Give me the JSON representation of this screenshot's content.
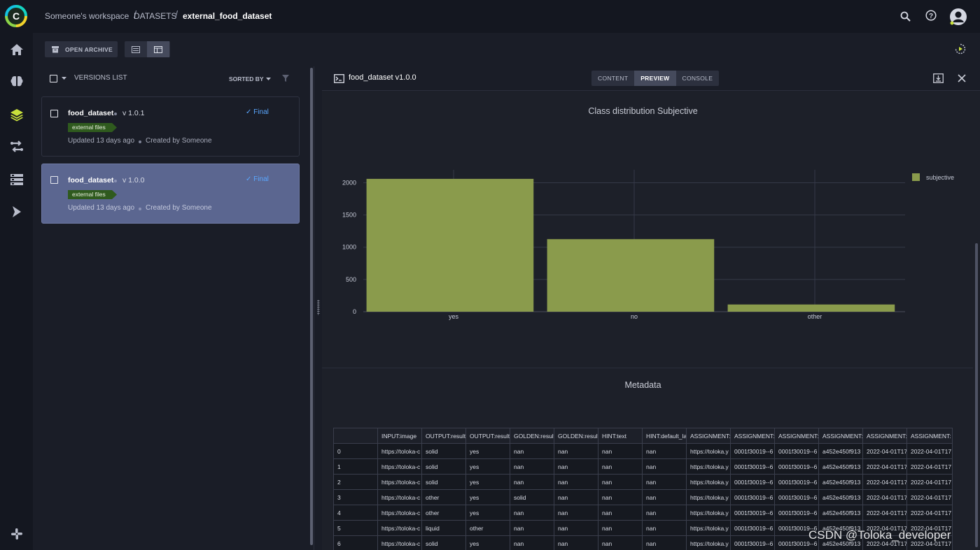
{
  "breadcrumb": {
    "workspace": "Someone's workspace",
    "section": "DATASETS",
    "current": "external_food_dataset"
  },
  "toolbar": {
    "open_archive_label": "OPEN ARCHIVE"
  },
  "versions_list": {
    "header_label": "VERSIONS LIST",
    "sorted_by_label": "SORTED BY",
    "items": [
      {
        "name": "food_dataset",
        "version": "v 1.0.1",
        "status": "Final",
        "tag": "external files",
        "updated": "Updated 13 days ago",
        "created_by": "Created by Someone",
        "selected": false
      },
      {
        "name": "food_dataset",
        "version": "v 1.0.0",
        "status": "Final",
        "tag": "external files",
        "updated": "Updated 13 days ago",
        "created_by": "Created by Someone",
        "selected": true
      }
    ]
  },
  "details": {
    "title": "food_dataset v1.0.0",
    "tabs": [
      "CONTENT",
      "PREVIEW",
      "CONSOLE"
    ],
    "active_tab": "PREVIEW",
    "metadata_title": "Metadata"
  },
  "chart_data": {
    "type": "bar",
    "title": "Class distribution Subjective",
    "categories": [
      "yes",
      "no",
      "other"
    ],
    "series": [
      {
        "name": "subjective",
        "values": [
          2060,
          1125,
          112
        ],
        "color": "#8a9b4c"
      }
    ],
    "ylim": [
      0,
      2200
    ],
    "yticks": [
      0,
      500,
      1000,
      1500,
      2000
    ],
    "legend_position": "top-right",
    "grid": true
  },
  "metadata_table": {
    "columns": [
      "",
      "INPUT:image",
      "OUTPUT:result",
      "OUTPUT:result",
      "GOLDEN:result",
      "GOLDEN:result",
      "HINT:text",
      "HINT:default_la",
      "ASSIGNMENT:",
      "ASSIGNMENT:",
      "ASSIGNMENT:",
      "ASSIGNMENT:",
      "ASSIGNMENT:",
      "ASSIGNMENT:"
    ],
    "rows": [
      [
        "0",
        "https://toloka-c",
        "solid",
        "yes",
        "nan",
        "nan",
        "nan",
        "nan",
        "https://toloka.y",
        "0001f30019--6",
        "0001f30019--6",
        "a452e450f913",
        "2022-04-01T17",
        "2022-04-01T17"
      ],
      [
        "1",
        "https://toloka-c",
        "solid",
        "yes",
        "nan",
        "nan",
        "nan",
        "nan",
        "https://toloka.y",
        "0001f30019--6",
        "0001f30019--6",
        "a452e450f913",
        "2022-04-01T17",
        "2022-04-01T17"
      ],
      [
        "2",
        "https://toloka-c",
        "solid",
        "yes",
        "nan",
        "nan",
        "nan",
        "nan",
        "https://toloka.y",
        "0001f30019--6",
        "0001f30019--6",
        "a452e450f913",
        "2022-04-01T17",
        "2022-04-01T17"
      ],
      [
        "3",
        "https://toloka-c",
        "other",
        "yes",
        "solid",
        "nan",
        "nan",
        "nan",
        "https://toloka.y",
        "0001f30019--6",
        "0001f30019--6",
        "a452e450f913",
        "2022-04-01T17",
        "2022-04-01T17"
      ],
      [
        "4",
        "https://toloka-c",
        "other",
        "yes",
        "nan",
        "nan",
        "nan",
        "nan",
        "https://toloka.y",
        "0001f30019--6",
        "0001f30019--6",
        "a452e450f913",
        "2022-04-01T17",
        "2022-04-01T17"
      ],
      [
        "5",
        "https://toloka-c",
        "liquid",
        "other",
        "nan",
        "nan",
        "nan",
        "nan",
        "https://toloka.y",
        "0001f30019--6",
        "0001f30019--6",
        "a452e450f913",
        "2022-04-01T17",
        "2022-04-01T17"
      ],
      [
        "6",
        "https://toloka-c",
        "solid",
        "yes",
        "nan",
        "nan",
        "nan",
        "nan",
        "https://toloka.y",
        "0001f30019--6",
        "0001f30019--6",
        "a452e450f913",
        "2022-04-01T17",
        "2022-04-01T17"
      ]
    ]
  },
  "watermark": "CSDN @Toloka_developer",
  "colors": {
    "accent_blue": "#5aa7ff",
    "bar_green": "#8a9b4c",
    "selected_card": "#5b6690",
    "tag_green": "#2f5a1e"
  },
  "icons": {
    "rail": [
      "home-icon",
      "brain-icon",
      "layers-icon",
      "pipelines-icon",
      "datasets-icon",
      "deploy-icon",
      "slack-icon"
    ],
    "top": [
      "search-icon",
      "help-icon",
      "user-avatar-icon"
    ]
  }
}
